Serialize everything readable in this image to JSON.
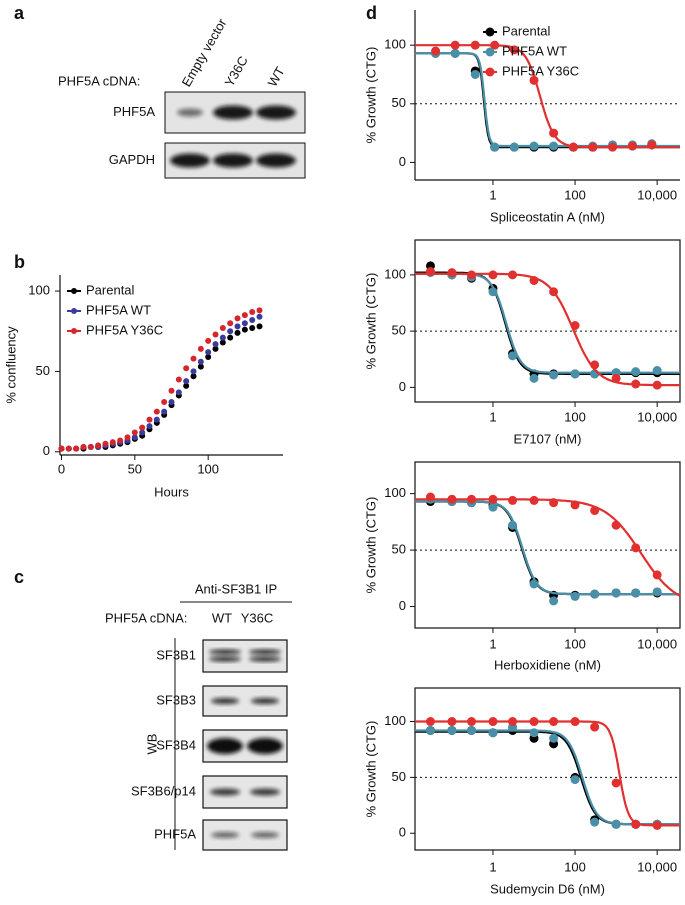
{
  "panel_labels": [
    "a",
    "b",
    "c",
    "d"
  ],
  "panel_a": {
    "cdna_label": "PHF5A cDNA:",
    "lanes": [
      "Empty vector",
      "Y36C",
      "WT"
    ],
    "rows": [
      "PHF5A",
      "GAPDH"
    ]
  },
  "panel_c": {
    "ip_label": "Anti-SF3B1 IP",
    "cdna_label": "PHF5A cDNA:",
    "lanes": [
      "WT",
      "Y36C"
    ],
    "method": "WB",
    "rows": [
      "SF3B1",
      "SF3B3",
      "SF3B4",
      "SF3B6/p14",
      "PHF5A"
    ]
  },
  "chart_data": [
    {
      "type": "scatter",
      "xlabel": "Hours",
      "ylabel": "% confluency",
      "legend": "top-left",
      "x": [
        0,
        5,
        10,
        15,
        20,
        25,
        30,
        35,
        40,
        45,
        50,
        55,
        60,
        65,
        70,
        75,
        80,
        85,
        90,
        95,
        100,
        105,
        110,
        115,
        120,
        125,
        130,
        135
      ],
      "xlim": [
        -1,
        151
      ],
      "xticks": [
        0,
        50,
        100
      ],
      "ylim": [
        -2,
        110
      ],
      "yticks": [
        0,
        50,
        100
      ],
      "series": [
        {
          "name": "Parental",
          "color": "#000000",
          "values": [
            2,
            2,
            2,
            2,
            3,
            3,
            3,
            4,
            5,
            6,
            8,
            10,
            14,
            18,
            23,
            29,
            35,
            41,
            47,
            53,
            59,
            64,
            68,
            71,
            74,
            76,
            77,
            78
          ]
        },
        {
          "name": "PHF5A WT",
          "color": "#3b3b9e",
          "values": [
            2,
            2,
            2,
            3,
            3,
            3,
            4,
            5,
            6,
            7,
            9,
            12,
            16,
            20,
            25,
            31,
            37,
            44,
            50,
            56,
            62,
            67,
            71,
            75,
            78,
            80,
            82,
            84
          ]
        },
        {
          "name": "PHF5A Y36C",
          "color": "#d6262c",
          "values": [
            2,
            2,
            2,
            3,
            3,
            4,
            5,
            6,
            7,
            9,
            12,
            15,
            20,
            25,
            31,
            38,
            45,
            52,
            58,
            64,
            69,
            73,
            77,
            80,
            83,
            85,
            87,
            88
          ]
        }
      ]
    },
    {
      "type": "scatter",
      "log_x": true,
      "xlabel": "Spliceostatin A (nM)",
      "ylabel": "% Growth (CTG)",
      "legend": "top-right",
      "reference_line": 50,
      "x": [
        0.04,
        0.12,
        0.37,
        1.1,
        3.3,
        10,
        30,
        91,
        270,
        820,
        2500,
        7400
      ],
      "xlim": [
        0.0126,
        36000
      ],
      "xticks": [
        1,
        100,
        {
          "value": 10000,
          "label": "10,000"
        }
      ],
      "ylim": [
        -15,
        130
      ],
      "yticks": [
        0,
        50,
        100
      ],
      "series": [
        {
          "name": "Parental",
          "color": "#000000",
          "values": [
            93,
            93,
            78,
            13,
            13,
            13,
            13,
            13,
            13,
            14,
            14,
            15
          ],
          "fit": {
            "top": 93,
            "bottom": 13,
            "ic50": 0.6,
            "hill": 8
          }
        },
        {
          "name": "PHF5A WT",
          "color": "#4a8fa8",
          "values": [
            93,
            93,
            75,
            13,
            13,
            14,
            14,
            13,
            14,
            15,
            15,
            16
          ],
          "fit": {
            "top": 93,
            "bottom": 14,
            "ic50": 0.62,
            "hill": 8
          }
        },
        {
          "name": "PHF5A Y36C",
          "color": "#e0302f",
          "values": [
            95,
            100,
            100,
            100,
            96,
            70,
            25,
            13,
            13,
            13,
            14,
            15
          ],
          "fit": {
            "top": 100,
            "bottom": 13,
            "ic50": 14,
            "hill": 2.5
          }
        }
      ]
    },
    {
      "type": "scatter",
      "log_x": true,
      "xlabel": "E7107 (nM)",
      "ylabel": "% Growth (CTG)",
      "reference_line": 50,
      "x": [
        0.03,
        0.1,
        0.3,
        1,
        3,
        10,
        30,
        100,
        300,
        1000,
        3000,
        10000
      ],
      "xlim": [
        0.0126,
        36000
      ],
      "xticks": [
        1,
        100,
        {
          "value": 10000,
          "label": "10,000"
        }
      ],
      "ylim": [
        -13,
        131
      ],
      "yticks": [
        0,
        50,
        100
      ],
      "series": [
        {
          "name": "Parental",
          "color": "#000000",
          "values": [
            108,
            100,
            97,
            88,
            30,
            12,
            12,
            12,
            12,
            13,
            13,
            13
          ],
          "fit": {
            "top": 102,
            "bottom": 12,
            "ic50": 2,
            "hill": 2.5
          }
        },
        {
          "name": "PHF5A WT",
          "color": "#4a8fa8",
          "values": [
            102,
            100,
            98,
            85,
            28,
            8,
            11,
            12,
            12,
            13,
            14,
            15
          ],
          "fit": {
            "top": 101,
            "bottom": 13,
            "ic50": 2.1,
            "hill": 2.5
          }
        },
        {
          "name": "PHF5A Y36C",
          "color": "#e0302f",
          "values": [
            103,
            102,
            100,
            100,
            100,
            95,
            85,
            55,
            20,
            8,
            3,
            2
          ],
          "fit": {
            "top": 101,
            "bottom": 2,
            "ic50": 90,
            "hill": 1.5
          }
        }
      ]
    },
    {
      "type": "scatter",
      "log_x": true,
      "xlabel": "Herboxidiene (nM)",
      "ylabel": "% Growth (CTG)",
      "reference_line": 50,
      "x": [
        0.03,
        0.1,
        0.3,
        1,
        3,
        10,
        30,
        100,
        300,
        1000,
        3000,
        10000
      ],
      "xlim": [
        0.0126,
        36000
      ],
      "xticks": [
        1,
        100,
        {
          "value": 10000,
          "label": "10,000"
        }
      ],
      "ylim": [
        -19,
        128
      ],
      "yticks": [
        0,
        50,
        100
      ],
      "series": [
        {
          "name": "Parental",
          "color": "#000000",
          "values": [
            93,
            93,
            92,
            90,
            70,
            22,
            10,
            10,
            11,
            12,
            12,
            12
          ],
          "fit": {
            "top": 93,
            "bottom": 11,
            "ic50": 5,
            "hill": 2.5
          }
        },
        {
          "name": "PHF5A WT",
          "color": "#4a8fa8",
          "values": [
            95,
            93,
            92,
            88,
            72,
            20,
            5,
            9,
            11,
            12,
            12,
            13
          ],
          "fit": {
            "top": 93,
            "bottom": 11,
            "ic50": 5.2,
            "hill": 2.5
          }
        },
        {
          "name": "PHF5A Y36C",
          "color": "#e0302f",
          "values": [
            97,
            95,
            95,
            95,
            94,
            94,
            92,
            90,
            85,
            72,
            52,
            28
          ],
          "fit": {
            "top": 95,
            "bottom": 0,
            "ic50": 4000,
            "hill": 1
          }
        }
      ]
    },
    {
      "type": "scatter",
      "log_x": true,
      "xlabel": "Sudemycin D6 (nM)",
      "ylabel": "% Growth (CTG)",
      "reference_line": 50,
      "x": [
        0.03,
        0.1,
        0.3,
        1,
        3,
        10,
        30,
        100,
        300,
        1000,
        3000,
        10000
      ],
      "xlim": [
        0.0126,
        36000
      ],
      "xticks": [
        1,
        100,
        {
          "value": 10000,
          "label": "10,000"
        }
      ],
      "ylim": [
        -15,
        130
      ],
      "yticks": [
        0,
        50,
        100
      ],
      "series": [
        {
          "name": "Parental",
          "color": "#000000",
          "values": [
            92,
            92,
            92,
            90,
            92,
            85,
            80,
            50,
            12,
            8,
            8,
            8
          ],
          "fit": {
            "top": 91,
            "bottom": 8,
            "ic50": 140,
            "hill": 2.5
          }
        },
        {
          "name": "PHF5A WT",
          "color": "#4a8fa8",
          "values": [
            92,
            92,
            92,
            90,
            95,
            90,
            85,
            48,
            10,
            8,
            8,
            8
          ],
          "fit": {
            "top": 92,
            "bottom": 8,
            "ic50": 150,
            "hill": 2.5
          }
        },
        {
          "name": "PHF5A Y36C",
          "color": "#e0302f",
          "values": [
            100,
            100,
            100,
            100,
            100,
            100,
            100,
            100,
            95,
            45,
            8,
            7
          ],
          "fit": {
            "top": 100,
            "bottom": 7,
            "ic50": 1200,
            "hill": 4
          }
        }
      ]
    }
  ]
}
